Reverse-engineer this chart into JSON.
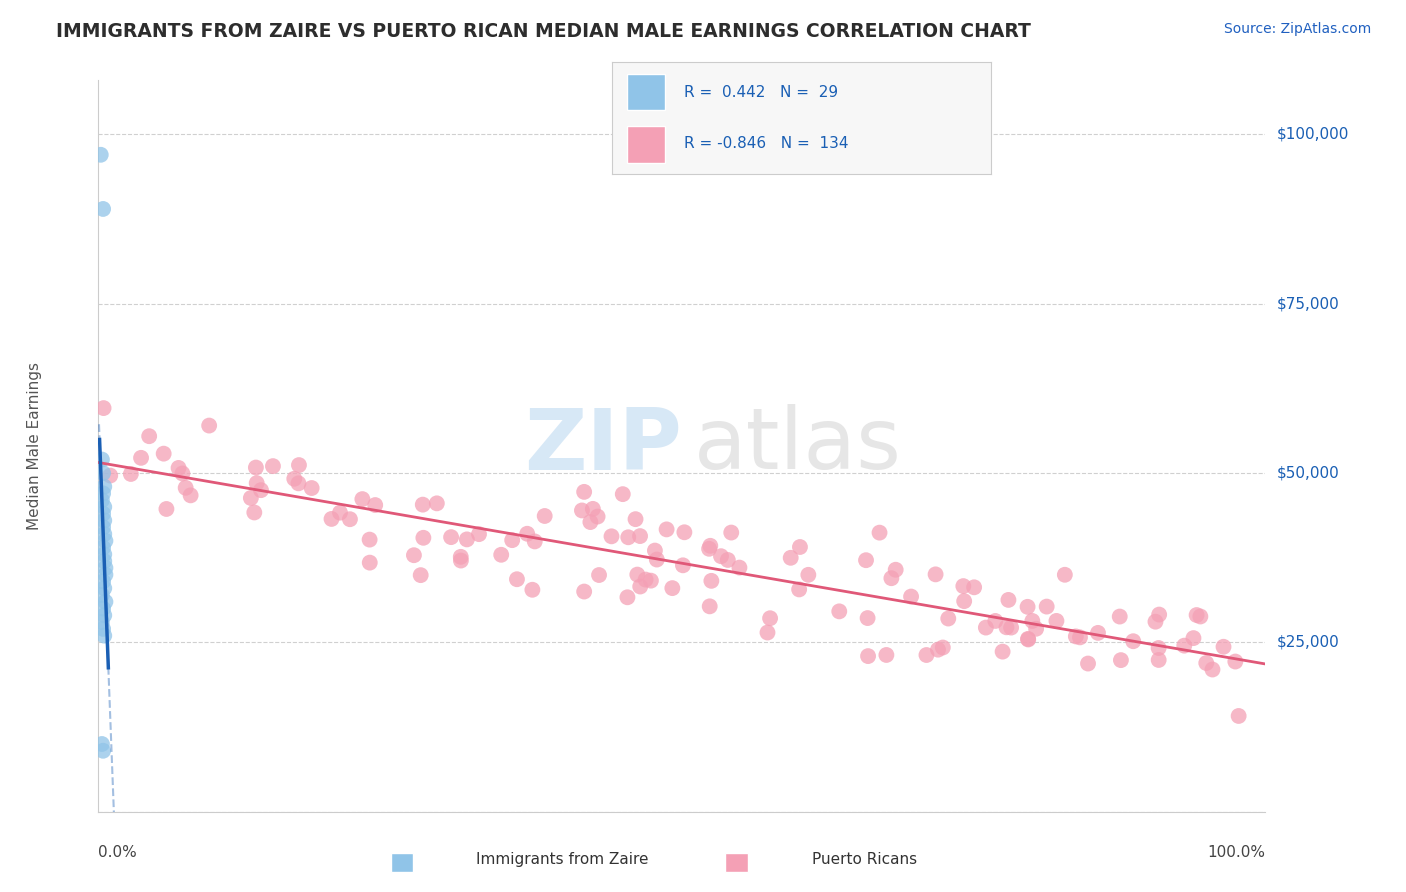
{
  "title": "IMMIGRANTS FROM ZAIRE VS PUERTO RICAN MEDIAN MALE EARNINGS CORRELATION CHART",
  "source": "Source: ZipAtlas.com",
  "ylabel": "Median Male Earnings",
  "ytick_values": [
    0,
    25000,
    50000,
    75000,
    100000
  ],
  "ytick_labels": [
    "",
    "$25,000",
    "$50,000",
    "$75,000",
    "$100,000"
  ],
  "xlim": [
    0,
    1.0
  ],
  "ylim": [
    0,
    108000
  ],
  "legend_blue_r": "0.442",
  "legend_blue_n": "29",
  "legend_pink_r": "-0.846",
  "legend_pink_n": "134",
  "blue_color": "#90c4e8",
  "pink_color": "#f4a0b5",
  "blue_line_color": "#1a5fb4",
  "pink_line_color": "#e05878",
  "title_color": "#2d2d2d",
  "source_color": "#2060c0",
  "axis_label_color": "#555555",
  "tick_label_color": "#1a5fb4",
  "watermark_zip_color": "#a8ccec",
  "watermark_atlas_color": "#b8b8b8"
}
